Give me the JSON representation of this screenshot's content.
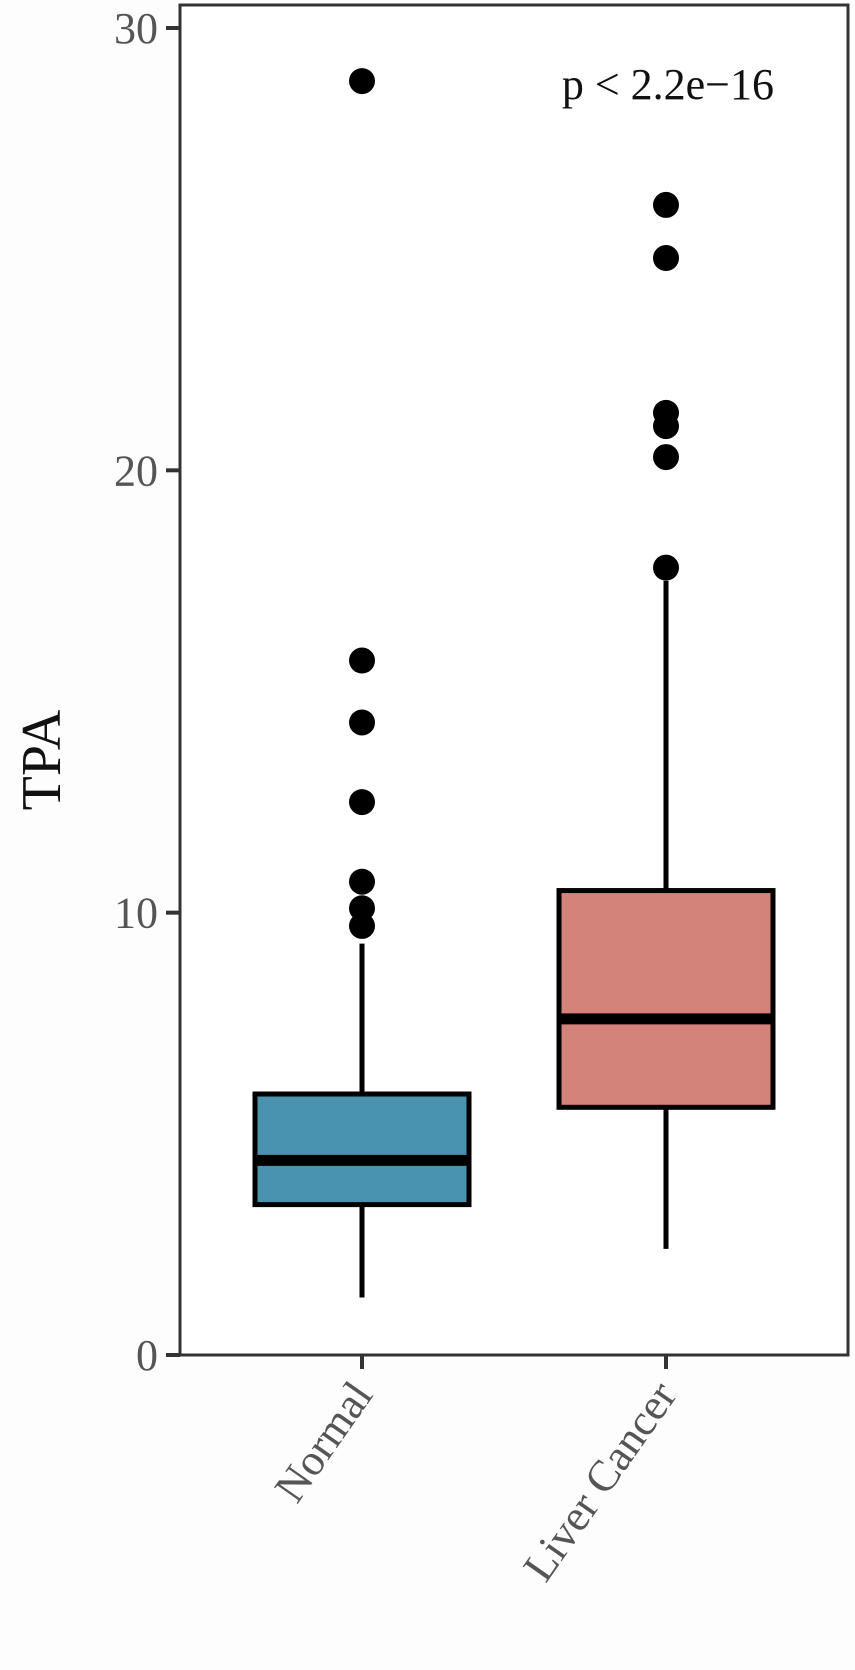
{
  "chart_data": {
    "type": "boxplot",
    "ylabel": "TPA",
    "xlabel": "",
    "ylim": [
      0,
      30
    ],
    "yticks": [
      0,
      10,
      20,
      30
    ],
    "grid": false,
    "legend": "none",
    "annotation": "p < 2.2e−16",
    "categories": [
      "Normal",
      "Liver Cancer"
    ],
    "groups": [
      {
        "name": "Normal",
        "color": "#4a93b0",
        "whisker_low": 1.3,
        "q1": 3.4,
        "median": 4.4,
        "q3": 5.9,
        "whisker_high": 9.3,
        "outliers": [
          9.7,
          10.1,
          10.7,
          12.5,
          14.3,
          15.7,
          28.8
        ]
      },
      {
        "name": "Liver Cancer",
        "color": "#d4837a",
        "whisker_low": 2.4,
        "q1": 5.6,
        "median": 7.6,
        "q3": 10.5,
        "whisker_high": 17.5,
        "outliers": [
          17.8,
          20.3,
          21.0,
          21.3,
          24.8,
          26.0
        ]
      }
    ]
  }
}
